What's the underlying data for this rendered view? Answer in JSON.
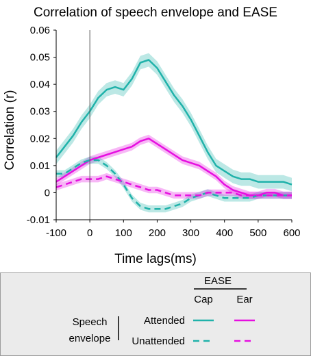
{
  "chart_data": {
    "type": "line",
    "title": "Correlation of speech envelope and EASE",
    "xlabel": "Time lags(ms)",
    "ylabel": "Correlation (r)",
    "xlim": [
      -100,
      600
    ],
    "ylim": [
      -0.01,
      0.06
    ],
    "xticks": [
      "-100",
      "0",
      "100",
      "200",
      "300",
      "400",
      "500",
      "600"
    ],
    "yticks": [
      "-0.01",
      "0",
      "0.01",
      "0.02",
      "0.03",
      "0.04",
      "0.05",
      "0.06"
    ],
    "xtick_values": [
      -100,
      0,
      100,
      200,
      300,
      400,
      500,
      600
    ],
    "ytick_values": [
      -0.01,
      0,
      0.01,
      0.02,
      0.03,
      0.04,
      0.05,
      0.06
    ],
    "reference_line_x": 0,
    "grid": false,
    "legend": {
      "group_title": "EASE",
      "columns": [
        "Cap",
        "Ear"
      ],
      "row_group_label_line1": "Speech",
      "row_group_label_line2": "envelope",
      "rows": [
        "Attended",
        "Unattended"
      ]
    },
    "series": [
      {
        "key": "cap_attended",
        "color": "#20b2aa",
        "dash": "solid",
        "x": [
          -100,
          -75,
          -50,
          -25,
          0,
          25,
          50,
          75,
          100,
          125,
          150,
          175,
          200,
          225,
          250,
          275,
          300,
          325,
          350,
          375,
          400,
          425,
          450,
          475,
          500,
          525,
          550,
          575,
          600
        ],
        "y": [
          0.013,
          0.017,
          0.021,
          0.026,
          0.03,
          0.035,
          0.038,
          0.039,
          0.038,
          0.042,
          0.048,
          0.049,
          0.046,
          0.041,
          0.036,
          0.032,
          0.027,
          0.021,
          0.015,
          0.01,
          0.008,
          0.006,
          0.005,
          0.005,
          0.004,
          0.004,
          0.004,
          0.004,
          0.003
        ],
        "err": 0.0025
      },
      {
        "key": "ear_attended",
        "color": "#e60fe0",
        "dash": "solid",
        "x": [
          -100,
          -75,
          -50,
          -25,
          0,
          25,
          50,
          75,
          100,
          125,
          150,
          175,
          200,
          225,
          250,
          275,
          300,
          325,
          350,
          375,
          400,
          425,
          450,
          475,
          500,
          525,
          550,
          575,
          600
        ],
        "y": [
          0.004,
          0.006,
          0.008,
          0.01,
          0.012,
          0.013,
          0.014,
          0.015,
          0.016,
          0.017,
          0.019,
          0.02,
          0.018,
          0.016,
          0.014,
          0.012,
          0.011,
          0.01,
          0.008,
          0.006,
          0.003,
          0.001,
          0.0,
          -0.001,
          -0.001,
          0.0,
          0.0,
          -0.001,
          -0.001
        ],
        "err": 0.0014
      },
      {
        "key": "cap_unattended",
        "color": "#20b2aa",
        "dash": "dashed",
        "x": [
          -100,
          -75,
          -50,
          -25,
          0,
          25,
          50,
          75,
          100,
          125,
          150,
          175,
          200,
          225,
          250,
          275,
          300,
          325,
          350,
          375,
          400,
          425,
          450,
          475,
          500,
          525,
          550,
          575,
          600
        ],
        "y": [
          0.007,
          0.007,
          0.009,
          0.011,
          0.012,
          0.012,
          0.01,
          0.007,
          0.003,
          -0.002,
          -0.005,
          -0.006,
          -0.006,
          -0.006,
          -0.005,
          -0.004,
          -0.002,
          -0.001,
          0.0,
          -0.001,
          -0.002,
          -0.002,
          -0.002,
          -0.002,
          -0.001,
          -0.001,
          -0.001,
          -0.001,
          -0.001
        ],
        "err": 0.0013
      },
      {
        "key": "ear_unattended",
        "color": "#e60fe0",
        "dash": "dashed",
        "x": [
          -100,
          -75,
          -50,
          -25,
          0,
          25,
          50,
          75,
          100,
          125,
          150,
          175,
          200,
          225,
          250,
          275,
          300,
          325,
          350,
          375,
          400,
          425,
          450,
          475,
          500,
          525,
          550,
          575,
          600
        ],
        "y": [
          0.002,
          0.003,
          0.004,
          0.005,
          0.005,
          0.005,
          0.006,
          0.005,
          0.004,
          0.003,
          0.002,
          0.001,
          0.001,
          0.0,
          -0.001,
          -0.001,
          -0.001,
          -0.001,
          0.0,
          0.0,
          0.0,
          0.0,
          -0.001,
          -0.001,
          -0.001,
          -0.001,
          -0.001,
          -0.001,
          -0.001
        ],
        "err": 0.0012
      }
    ]
  }
}
